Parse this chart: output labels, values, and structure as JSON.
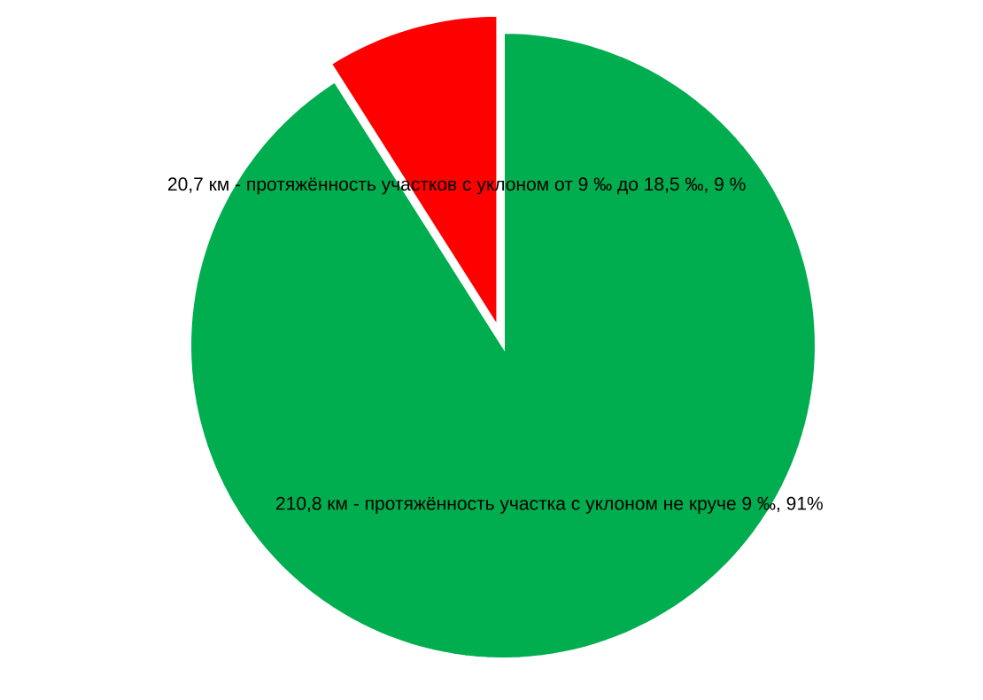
{
  "chart_data": {
    "type": "pie",
    "categories": [
      "20,7 км - протяжённость участков с уклоном от 9 ‰ до 18,5 ‰, 9 %",
      "210,8 км - протяжённость участка с уклоном не круче 9 ‰, 91%"
    ],
    "values": [
      9,
      91
    ],
    "colors": [
      "#ff0000",
      "#00ae4f"
    ]
  }
}
